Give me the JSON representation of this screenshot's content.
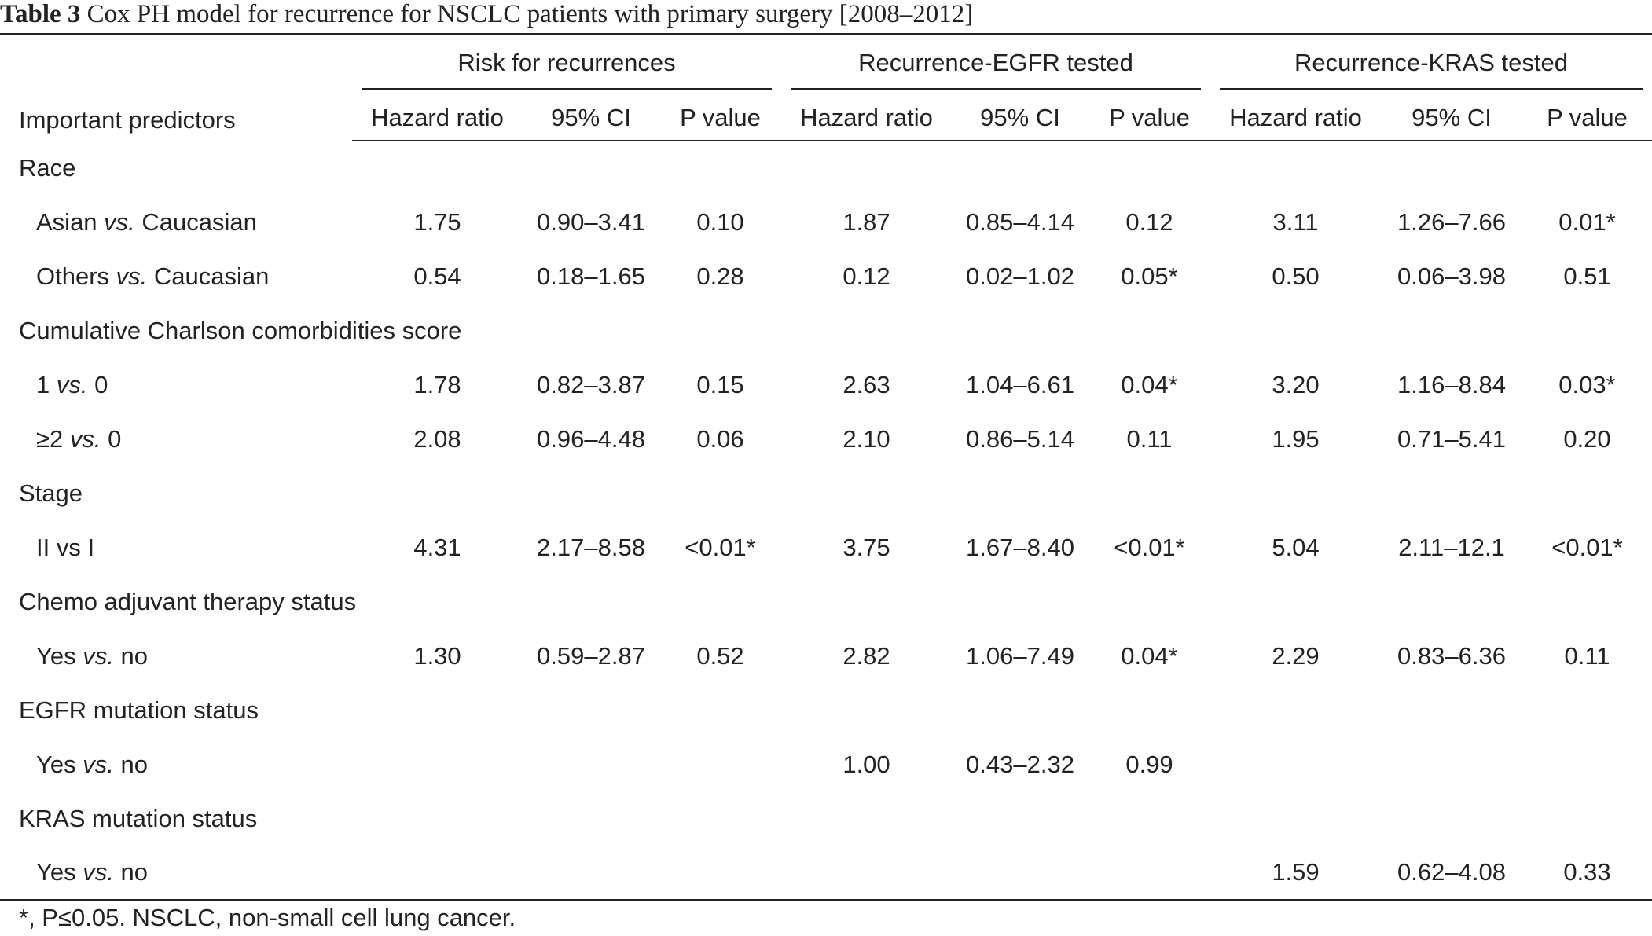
{
  "caption": {
    "label": "Table 3",
    "text": "Cox PH model for recurrence for NSCLC patients with primary surgery [2008–2012]"
  },
  "header": {
    "predictor_label": "Important predictors",
    "groups": [
      "Risk for recurrences",
      "Recurrence-EGFR tested",
      "Recurrence-KRAS tested"
    ],
    "subcols": [
      "Hazard ratio",
      "95% CI",
      "P value"
    ]
  },
  "rows": [
    {
      "type": "section",
      "label": "Race"
    },
    {
      "type": "data",
      "label": "Asian",
      "label_italic": "vs.",
      "label_tail": "Caucasian",
      "values": [
        "1.75",
        "0.90–3.41",
        "0.10",
        "1.87",
        "0.85–4.14",
        "0.12",
        "3.11",
        "1.26–7.66",
        "0.01*"
      ]
    },
    {
      "type": "data",
      "label": "Others",
      "label_italic": "vs.",
      "label_tail": "Caucasian",
      "values": [
        "0.54",
        "0.18–1.65",
        "0.28",
        "0.12",
        "0.02–1.02",
        "0.05*",
        "0.50",
        "0.06–3.98",
        "0.51"
      ]
    },
    {
      "type": "section",
      "label": "Cumulative Charlson comorbidities score"
    },
    {
      "type": "data",
      "label": "1",
      "label_italic": "vs.",
      "label_tail": "0",
      "values": [
        "1.78",
        "0.82–3.87",
        "0.15",
        "2.63",
        "1.04–6.61",
        "0.04*",
        "3.20",
        "1.16–8.84",
        "0.03*"
      ]
    },
    {
      "type": "data",
      "label": "≥2",
      "label_italic": "vs.",
      "label_tail": "0",
      "values": [
        "2.08",
        "0.96–4.48",
        "0.06",
        "2.10",
        "0.86–5.14",
        "0.11",
        "1.95",
        "0.71–5.41",
        "0.20"
      ]
    },
    {
      "type": "section",
      "label": "Stage"
    },
    {
      "type": "data",
      "label": "II vs I",
      "label_italic": "",
      "label_tail": "",
      "values": [
        "4.31",
        "2.17–8.58",
        "<0.01*",
        "3.75",
        "1.67–8.40",
        "<0.01*",
        "5.04",
        "2.11–12.1",
        "<0.01*"
      ]
    },
    {
      "type": "section",
      "label": "Chemo adjuvant therapy status"
    },
    {
      "type": "data",
      "label": "Yes",
      "label_italic": "vs.",
      "label_tail": "no",
      "values": [
        "1.30",
        "0.59–2.87",
        "0.52",
        "2.82",
        "1.06–7.49",
        "0.04*",
        "2.29",
        "0.83–6.36",
        "0.11"
      ]
    },
    {
      "type": "section",
      "label": "EGFR mutation status"
    },
    {
      "type": "data",
      "label": "Yes",
      "label_italic": "vs.",
      "label_tail": "no",
      "values": [
        "",
        "",
        "",
        "1.00",
        "0.43–2.32",
        "0.99",
        "",
        "",
        ""
      ]
    },
    {
      "type": "section",
      "label": "KRAS mutation status"
    },
    {
      "type": "data",
      "label": "Yes",
      "label_italic": "vs.",
      "label_tail": "no",
      "values": [
        "",
        "",
        "",
        "",
        "",
        "",
        "1.59",
        "0.62–4.08",
        "0.33"
      ]
    }
  ],
  "footnote": "*, P≤0.05. NSCLC, non-small cell lung cancer."
}
